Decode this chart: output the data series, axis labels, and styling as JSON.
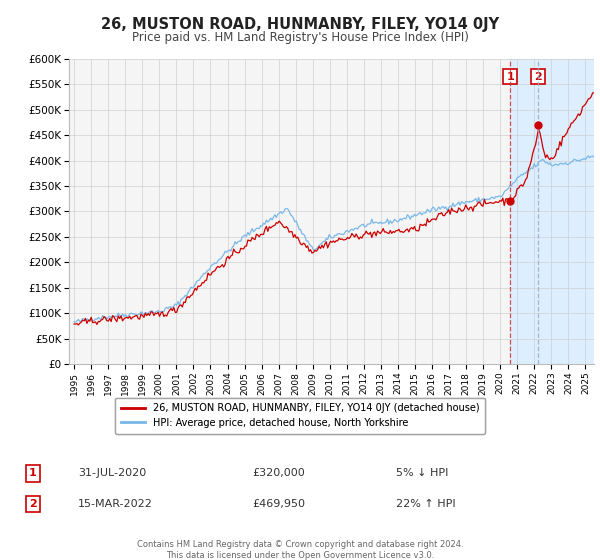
{
  "title": "26, MUSTON ROAD, HUNMANBY, FILEY, YO14 0JY",
  "subtitle": "Price paid vs. HM Land Registry's House Price Index (HPI)",
  "legend_line1": "26, MUSTON ROAD, HUNMANBY, FILEY, YO14 0JY (detached house)",
  "legend_line2": "HPI: Average price, detached house, North Yorkshire",
  "footer": "Contains HM Land Registry data © Crown copyright and database right 2024.\nThis data is licensed under the Open Government Licence v3.0.",
  "annotation1_date": "31-JUL-2020",
  "annotation1_price": "£320,000",
  "annotation1_hpi": "5% ↓ HPI",
  "annotation2_date": "15-MAR-2022",
  "annotation2_price": "£469,950",
  "annotation2_hpi": "22% ↑ HPI",
  "sale1_year": 2020.58,
  "sale1_value": 320000,
  "sale2_year": 2022.21,
  "sale2_value": 469950,
  "vline1_year": 2020.58,
  "vline2_year": 2022.21,
  "shade_start": 2020.58,
  "shade_end": 2025.5,
  "ylim_min": 0,
  "ylim_max": 600000,
  "xlim_start": 1994.7,
  "xlim_end": 2025.5,
  "hpi_color": "#7ab8e8",
  "price_color": "#cc0000",
  "shade_color": "#ddeeff",
  "vline1_color": "#cc3333",
  "vline2_color": "#99aacc",
  "background_color": "#f5f5f5",
  "grid_color": "#cccccc",
  "box_label_color": "#cc0000"
}
